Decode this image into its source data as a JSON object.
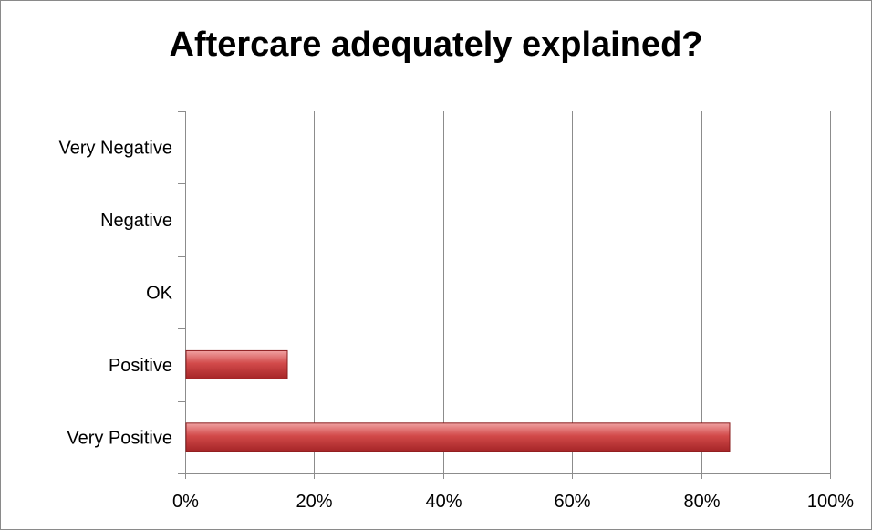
{
  "chart_data": {
    "type": "bar",
    "orientation": "horizontal",
    "title": "Aftercare adequately explained?",
    "categories": [
      "Very Negative",
      "Negative",
      "OK",
      "Positive",
      "Very Positive"
    ],
    "values": [
      0,
      0,
      0,
      0.157,
      0.843
    ],
    "xlim": [
      0,
      1
    ],
    "xticks": [
      0,
      0.2,
      0.4,
      0.6,
      0.8,
      1.0
    ],
    "xtick_labels": [
      "0%",
      "20%",
      "40%",
      "60%",
      "80%",
      "100%"
    ],
    "grid": "vertical",
    "legend": "none",
    "bar_color": "#c0393b",
    "bar_border_color": "#8a1c1e"
  }
}
